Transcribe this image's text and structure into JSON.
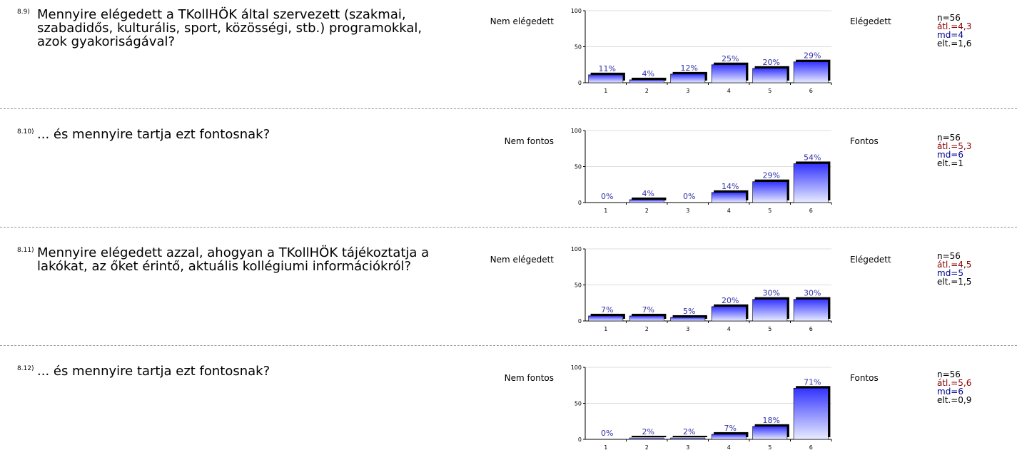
{
  "questions": [
    {
      "number": "8.9)",
      "text": "Mennyire elégedett a TKollHÖK által szervezett (szakmai, szabadidős, kulturális, sport, közösségi, stb.) programokkal, azok gyakoriságával?",
      "left_label": "Nem elégedett",
      "right_label": "Elégedett",
      "stats": {
        "n": "n=56",
        "avg": "átl.=4,3",
        "md": "md=4",
        "sd": "elt.=1,6"
      }
    },
    {
      "number": "8.10)",
      "text": "... és mennyire tartja ezt fontosnak?",
      "left_label": "Nem fontos",
      "right_label": "Fontos",
      "stats": {
        "n": "n=56",
        "avg": "átl.=5,3",
        "md": "md=6",
        "sd": "elt.=1"
      }
    },
    {
      "number": "8.11)",
      "text": "Mennyire elégedett azzal, ahogyan a TKollHÖK tájékoztatja a lakókat, az őket érintő, aktuális kollégiumi információkról?",
      "left_label": "Nem elégedett",
      "right_label": "Elégedett",
      "stats": {
        "n": "n=56",
        "avg": "átl.=4,5",
        "md": "md=5",
        "sd": "elt.=1,5"
      }
    },
    {
      "number": "8.12)",
      "text": "... és mennyire tartja ezt fontosnak?",
      "left_label": "Nem fontos",
      "right_label": "Fontos",
      "stats": {
        "n": "n=56",
        "avg": "átl.=5,6",
        "md": "md=6",
        "sd": "elt.=0,9"
      }
    }
  ],
  "chart_data": [
    {
      "type": "bar",
      "categories": [
        "1",
        "2",
        "3",
        "4",
        "5",
        "6"
      ],
      "values": [
        11,
        4,
        12,
        25,
        20,
        29
      ],
      "labels": [
        "11%",
        "4%",
        "12%",
        "25%",
        "20%",
        "29%"
      ],
      "ylim": [
        0,
        100
      ],
      "yticks": [
        "0",
        "50",
        "100"
      ],
      "grid": true,
      "color": "#3333ff"
    },
    {
      "type": "bar",
      "categories": [
        "1",
        "2",
        "3",
        "4",
        "5",
        "6"
      ],
      "values": [
        0,
        4,
        0,
        14,
        29,
        54
      ],
      "labels": [
        "0%",
        "4%",
        "0%",
        "14%",
        "29%",
        "54%"
      ],
      "ylim": [
        0,
        100
      ],
      "yticks": [
        "0",
        "50",
        "100"
      ],
      "grid": true,
      "color": "#3333ff"
    },
    {
      "type": "bar",
      "categories": [
        "1",
        "2",
        "3",
        "4",
        "5",
        "6"
      ],
      "values": [
        7,
        7,
        5,
        20,
        30,
        30
      ],
      "labels": [
        "7%",
        "7%",
        "5%",
        "20%",
        "30%",
        "30%"
      ],
      "ylim": [
        0,
        100
      ],
      "yticks": [
        "0",
        "50",
        "100"
      ],
      "grid": true,
      "color": "#3333ff"
    },
    {
      "type": "bar",
      "categories": [
        "1",
        "2",
        "3",
        "4",
        "5",
        "6"
      ],
      "values": [
        0,
        2,
        2,
        7,
        18,
        71
      ],
      "labels": [
        "0%",
        "2%",
        "2%",
        "7%",
        "18%",
        "71%"
      ],
      "ylim": [
        0,
        100
      ],
      "yticks": [
        "0",
        "50",
        "100"
      ],
      "grid": true,
      "color": "#3333ff"
    }
  ]
}
